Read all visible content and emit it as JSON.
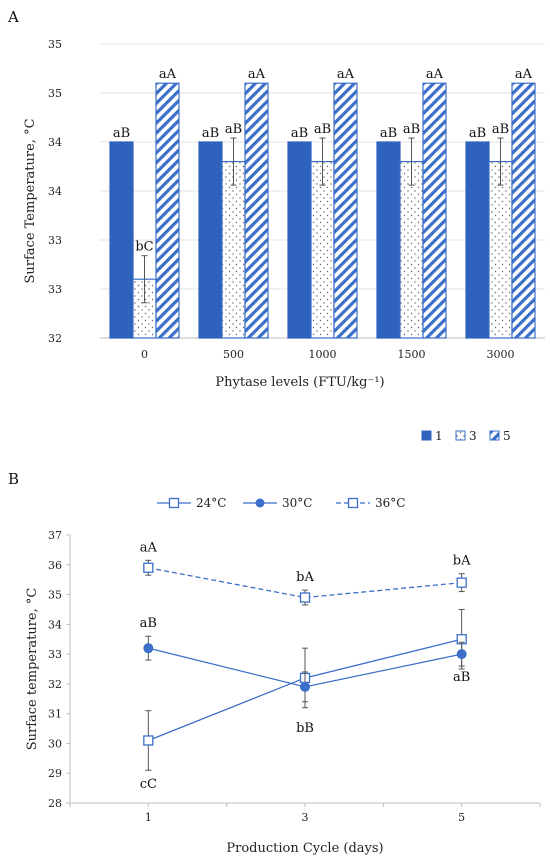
{
  "figure": {
    "colors": {
      "blue": "#3b6fc9",
      "dark_blue": "#2f62bd",
      "grid": "#e3e3e3",
      "axis": "#bdbdbd",
      "error": "#555555"
    }
  },
  "chart_data": [
    {
      "panel": "A",
      "type": "bar",
      "xlabel": "Phytase levels (FTU/kg⁻¹)",
      "ylabel": "Surface Temperature, °C",
      "categories": [
        "0",
        "500",
        "1000",
        "1500",
        "3000"
      ],
      "ylim": [
        32,
        35
      ],
      "yticks": [
        32,
        32.5,
        33,
        33.5,
        34,
        34.5,
        35
      ],
      "ytick_labels": [
        "32",
        "33",
        "33",
        "34",
        "34",
        "35",
        "35"
      ],
      "grid": true,
      "legend_position": "bottom-right",
      "series": [
        {
          "name": "1",
          "pattern": "solid",
          "values": [
            34.0,
            34.0,
            34.0,
            34.0,
            34.0
          ],
          "errors": [
            0,
            0,
            0,
            0,
            0
          ],
          "labels": [
            "aB",
            "aB",
            "aB",
            "aB",
            "aB"
          ]
        },
        {
          "name": "3",
          "pattern": "dotted",
          "values": [
            32.6,
            33.8,
            33.8,
            33.8,
            33.8
          ],
          "errors": [
            0.24,
            0.24,
            0.24,
            0.24,
            0.24
          ],
          "labels": [
            "bC",
            "aB",
            "aB",
            "aB",
            "aB"
          ]
        },
        {
          "name": "5",
          "pattern": "hatched",
          "values": [
            34.6,
            34.6,
            34.6,
            34.6,
            34.6
          ],
          "errors": [
            0,
            0,
            0,
            0,
            0
          ],
          "labels": [
            "aA",
            "aA",
            "aA",
            "aA",
            "aA"
          ]
        }
      ]
    },
    {
      "panel": "B",
      "type": "line",
      "xlabel": "Production Cycle (days)",
      "ylabel": "Surface temperature, °C",
      "x": [
        1,
        3,
        5
      ],
      "xlim": [
        0,
        6
      ],
      "ylim": [
        28,
        37
      ],
      "yticks": [
        28,
        29,
        30,
        31,
        32,
        33,
        34,
        35,
        36,
        37
      ],
      "grid": false,
      "legend_position": "top",
      "series": [
        {
          "name": "24°C",
          "marker": "open-square",
          "dash": "solid",
          "values": [
            30.1,
            32.2,
            33.5
          ],
          "errors": [
            1.0,
            1.0,
            1.0
          ],
          "labels": [
            "cC",
            "",
            ""
          ]
        },
        {
          "name": "30°C",
          "marker": "filled-circle",
          "dash": "solid",
          "values": [
            33.2,
            31.9,
            33.0
          ],
          "errors": [
            0.4,
            0.5,
            0.4
          ],
          "labels": [
            "aB",
            "bB",
            "aB"
          ]
        },
        {
          "name": "36°C",
          "marker": "open-square",
          "dash": "dashed",
          "values": [
            35.9,
            34.9,
            35.4
          ],
          "errors": [
            0.25,
            0.25,
            0.3
          ],
          "labels": [
            "aA",
            "bA",
            "bA"
          ]
        }
      ]
    }
  ]
}
